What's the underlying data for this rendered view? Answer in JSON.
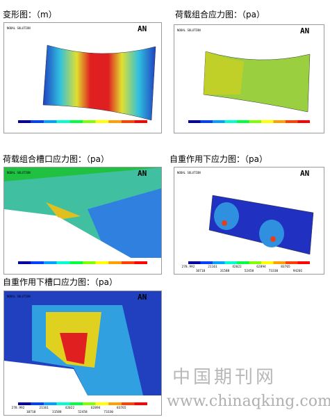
{
  "panels": [
    {
      "caption": "变形图：（m）",
      "header": "NODAL SOLUTION",
      "logo": "AN",
      "legend_top": [],
      "legend_bottom": []
    },
    {
      "caption": "荷载组合应力图：（pa）",
      "header": "NODAL SOLUTION",
      "logo": "AN",
      "legend_top": [],
      "legend_bottom": []
    },
    {
      "caption": "荷载组合槽口应力图：（pa）",
      "header": "NODAL SOLUTION",
      "logo": "AN",
      "legend_top": [],
      "legend_bottom": []
    },
    {
      "caption": "自重作用下应力图：（pa）",
      "header": "NODAL SOLUTION",
      "logo": "AN",
      "legend_top": [
        "278.992",
        "21161",
        "42022",
        "62894",
        "83765"
      ],
      "legend_bottom": [
        "10718",
        "31588",
        "52458",
        "73330",
        "94201"
      ]
    },
    {
      "caption": "自重作用下槽口应力图：（pa）",
      "header": "NODAL SOLUTION",
      "logo": "AN",
      "legend_top": [
        "278.992",
        "21161",
        "42022",
        "62894",
        "83765"
      ],
      "legend_bottom": [
        "10718",
        "31588",
        "52458",
        "73330"
      ]
    }
  ],
  "watermark": {
    "name": "中国期刊网",
    "url": "www.chinaqking.com"
  }
}
